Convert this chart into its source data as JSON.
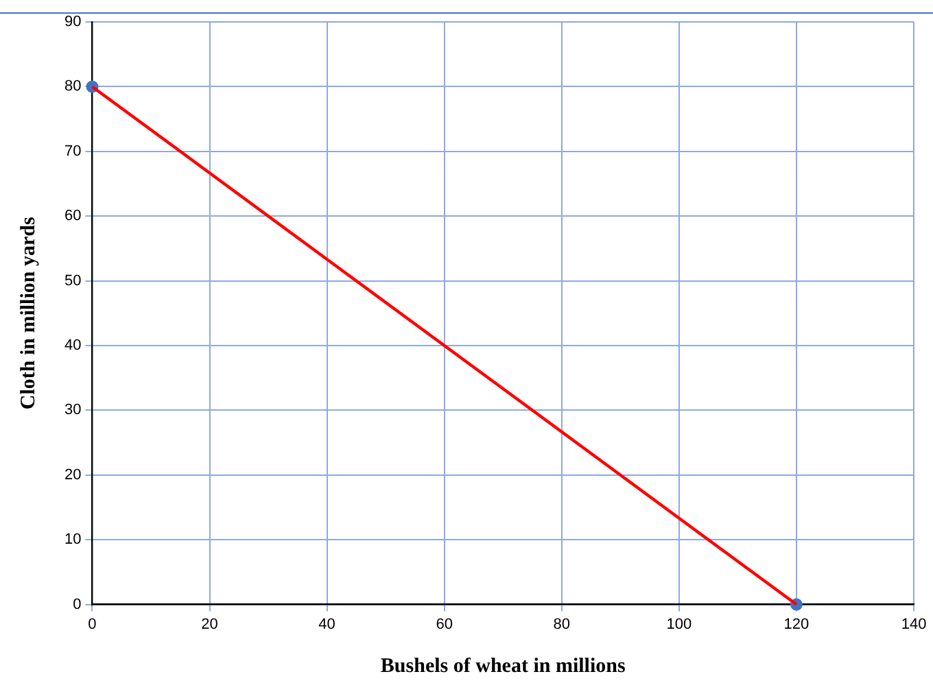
{
  "chart_data": {
    "type": "line",
    "xlabel": "Bushels of wheat in millions",
    "ylabel": "Cloth in million yards",
    "x": [
      0,
      120
    ],
    "series": [
      {
        "type": "line",
        "color": "#ff0000",
        "values": [
          80,
          0
        ],
        "marker": "none"
      },
      {
        "type": "scatter",
        "color": "#4472c4",
        "values": [
          80,
          0
        ],
        "marker": "circle"
      }
    ],
    "xlim": [
      0,
      140
    ],
    "xticks": [
      0,
      20,
      40,
      60,
      80,
      100,
      120,
      140
    ],
    "ylim": [
      0,
      90
    ],
    "yticks": [
      0,
      10,
      20,
      30,
      40,
      50,
      60,
      70,
      80,
      90
    ],
    "grid": true,
    "legend": false
  }
}
